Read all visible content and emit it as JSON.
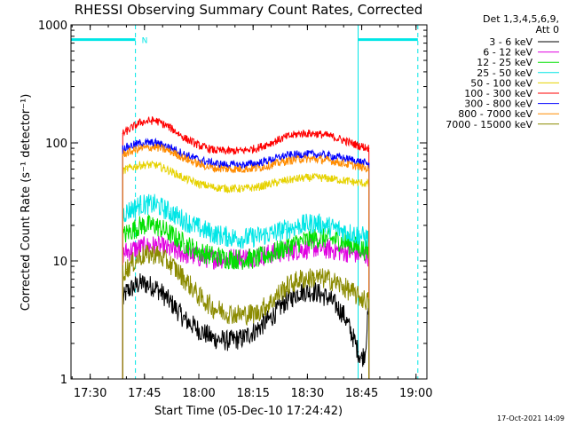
{
  "chart_data": {
    "type": "line",
    "title": "RHESSI Observing Summary Count Rates, Corrected",
    "xlabel": "Start Time (05-Dec-10 17:24:42)",
    "ylabel": "Corrected Count Rate (s⁻¹ detector⁻¹)",
    "xlim": [
      "17:24:42",
      "19:03:00"
    ],
    "ylim": [
      1,
      1000
    ],
    "yscale": "log",
    "x_ticks": [
      "17:30",
      "17:45",
      "18:00",
      "18:15",
      "18:30",
      "18:45",
      "19:00"
    ],
    "y_ticks": [
      "1",
      "10",
      "100",
      "1000"
    ],
    "legend_header": [
      "Det 1,3,4,5,6,9,",
      "Att 0"
    ],
    "legend_position": "right",
    "timestamp": "17-Oct-2021 14:09",
    "flags": {
      "label": "N",
      "color": "#00e6e6",
      "segments": [
        [
          "17:24:42",
          "17:42:30"
        ],
        [
          "18:44:00",
          "19:00:30"
        ]
      ],
      "value": 750
    },
    "series": [
      {
        "name": "3 - 6 keV",
        "color": "#000000",
        "x": [
          "17:39:00",
          "17:40:00",
          "17:44:00",
          "17:48:00",
          "17:52:00",
          "17:56:00",
          "18:00:00",
          "18:04:00",
          "18:08:00",
          "18:12:00",
          "18:16:00",
          "18:20:00",
          "18:24:00",
          "18:28:00",
          "18:32:00",
          "18:36:00",
          "18:40:00",
          "18:42:00",
          "18:44:00",
          "18:45:00",
          "18:46:00",
          "18:47:00"
        ],
        "y": [
          4.5,
          5.5,
          6.5,
          6.0,
          4.5,
          3.2,
          2.6,
          2.2,
          2.1,
          2.2,
          2.6,
          3.3,
          4.5,
          5.5,
          5.5,
          4.8,
          3.5,
          2.5,
          1.7,
          1.5,
          1.7,
          4.0
        ]
      },
      {
        "name": "6 - 12 keV",
        "color": "#e000e0",
        "x": [
          "17:39:00",
          "17:40:00",
          "17:44:00",
          "17:48:00",
          "17:52:00",
          "17:56:00",
          "18:00:00",
          "18:04:00",
          "18:08:00",
          "18:12:00",
          "18:16:00",
          "18:20:00",
          "18:24:00",
          "18:28:00",
          "18:32:00",
          "18:36:00",
          "18:40:00",
          "18:44:00",
          "18:47:00"
        ],
        "y": [
          11.5,
          12,
          13,
          13.5,
          12.5,
          11.5,
          10.8,
          10.5,
          10.5,
          10.7,
          11,
          11.5,
          12,
          12.5,
          13,
          12.5,
          12,
          11.5,
          11
        ]
      },
      {
        "name": "12 - 25 keV",
        "color": "#00e000",
        "x": [
          "17:39:00",
          "17:40:00",
          "17:44:00",
          "17:48:00",
          "17:52:00",
          "17:56:00",
          "18:00:00",
          "18:04:00",
          "18:08:00",
          "18:12:00",
          "18:16:00",
          "18:20:00",
          "18:24:00",
          "18:28:00",
          "18:32:00",
          "18:36:00",
          "18:40:00",
          "18:44:00",
          "18:47:00"
        ],
        "y": [
          16,
          17,
          20,
          20,
          17,
          14,
          12,
          11,
          10.5,
          10.3,
          10.5,
          11.5,
          13,
          14.5,
          15.5,
          15.5,
          14.5,
          13,
          12
        ]
      },
      {
        "name": "25 - 50 keV",
        "color": "#00e6e6",
        "x": [
          "17:39:00",
          "17:40:00",
          "17:44:00",
          "17:48:00",
          "17:52:00",
          "17:56:00",
          "18:00:00",
          "18:04:00",
          "18:08:00",
          "18:12:00",
          "18:16:00",
          "18:20:00",
          "18:24:00",
          "18:28:00",
          "18:32:00",
          "18:36:00",
          "18:40:00",
          "18:44:00",
          "18:47:00"
        ],
        "y": [
          25,
          26,
          30,
          30,
          26,
          22,
          19,
          17,
          16,
          15.5,
          16,
          17,
          18.5,
          20,
          21,
          19.5,
          18,
          16.5,
          15.5
        ]
      },
      {
        "name": "50 - 100 keV",
        "color": "#e6d200",
        "x": [
          "17:39:00",
          "17:40:00",
          "17:44:00",
          "17:48:00",
          "17:52:00",
          "17:56:00",
          "18:00:00",
          "18:04:00",
          "18:08:00",
          "18:12:00",
          "18:16:00",
          "18:20:00",
          "18:24:00",
          "18:28:00",
          "18:32:00",
          "18:36:00",
          "18:40:00",
          "18:44:00",
          "18:47:00"
        ],
        "y": [
          58,
          60,
          65,
          65,
          58,
          50,
          45,
          42,
          41,
          41,
          42,
          45,
          48,
          50,
          51,
          50,
          48,
          46,
          45
        ]
      },
      {
        "name": "100 - 300 keV",
        "color": "#ff0000",
        "x": [
          "17:39:00",
          "17:40:00",
          "17:44:00",
          "17:48:00",
          "17:52:00",
          "17:56:00",
          "18:00:00",
          "18:04:00",
          "18:08:00",
          "18:12:00",
          "18:16:00",
          "18:20:00",
          "18:24:00",
          "18:28:00",
          "18:32:00",
          "18:36:00",
          "18:40:00",
          "18:44:00",
          "18:47:00"
        ],
        "y": [
          120,
          125,
          150,
          155,
          135,
          110,
          95,
          87,
          85,
          86,
          90,
          100,
          112,
          120,
          120,
          115,
          105,
          95,
          90
        ]
      },
      {
        "name": "300 - 800 keV",
        "color": "#0000ff",
        "x": [
          "17:39:00",
          "17:40:00",
          "17:44:00",
          "17:48:00",
          "17:52:00",
          "17:56:00",
          "18:00:00",
          "18:04:00",
          "18:08:00",
          "18:12:00",
          "18:16:00",
          "18:20:00",
          "18:24:00",
          "18:28:00",
          "18:32:00",
          "18:36:00",
          "18:40:00",
          "18:44:00",
          "18:47:00"
        ],
        "y": [
          90,
          92,
          100,
          100,
          92,
          80,
          72,
          67,
          65,
          65,
          67,
          72,
          78,
          80,
          80,
          78,
          74,
          70,
          66
        ]
      },
      {
        "name": "800 - 7000 keV",
        "color": "#ff8c00",
        "x": [
          "17:39:00",
          "17:40:00",
          "17:44:00",
          "17:48:00",
          "17:52:00",
          "17:56:00",
          "18:00:00",
          "18:04:00",
          "18:08:00",
          "18:12:00",
          "18:16:00",
          "18:20:00",
          "18:24:00",
          "18:28:00",
          "18:32:00",
          "18:36:00",
          "18:40:00",
          "18:44:00",
          "18:47:00"
        ],
        "y": [
          80,
          82,
          90,
          92,
          85,
          74,
          66,
          61,
          60,
          60,
          61,
          65,
          70,
          73,
          73,
          71,
          67,
          63,
          60
        ]
      },
      {
        "name": "7000 - 15000 keV",
        "color": "#8b8b00",
        "x": [
          "17:39:00",
          "17:40:00",
          "17:44:00",
          "17:48:00",
          "17:52:00",
          "17:56:00",
          "18:00:00",
          "18:04:00",
          "18:08:00",
          "18:12:00",
          "18:16:00",
          "18:20:00",
          "18:24:00",
          "18:28:00",
          "18:32:00",
          "18:36:00",
          "18:40:00",
          "18:44:00",
          "18:47:00"
        ],
        "y": [
          8,
          8.5,
          11,
          11.5,
          9.5,
          7,
          5,
          4,
          3.6,
          3.5,
          3.6,
          4.5,
          6,
          7,
          7.2,
          7,
          6,
          5,
          4.5
        ]
      }
    ]
  }
}
